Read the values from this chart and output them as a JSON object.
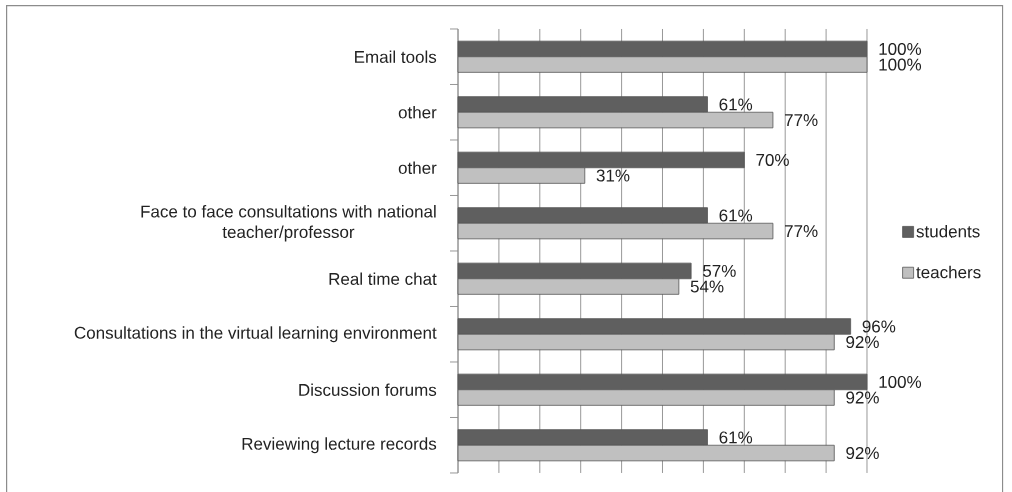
{
  "chart_data": {
    "type": "bar",
    "orientation": "horizontal",
    "categories": [
      "Email tools",
      "other",
      "other",
      "Face to face consultations with national teacher/professor",
      "Real time chat",
      "Consultations in the virtual learning environment",
      "Discussion forums",
      "Reviewing lecture records"
    ],
    "series": [
      {
        "name": "students",
        "color": "#5f5f5f",
        "values": [
          100,
          61,
          70,
          61,
          57,
          96,
          100,
          61
        ],
        "value_labels": [
          "100%",
          "61%",
          "70%",
          "61%",
          "57%",
          "96%",
          "100%",
          "61%"
        ]
      },
      {
        "name": "teachers",
        "color": "#c0c0c0",
        "values": [
          100,
          77,
          31,
          77,
          54,
          92,
          92,
          92
        ],
        "value_labels": [
          "100%",
          "77%",
          "31%",
          "77%",
          "54%",
          "92%",
          "92%",
          "92%"
        ]
      }
    ],
    "xlim": [
      0,
      100
    ],
    "xticks": [
      {
        "value": 0,
        "label": null
      },
      {
        "value": 10,
        "label": null
      },
      {
        "value": 20,
        "label": null
      },
      {
        "value": 30,
        "label": null
      },
      {
        "value": 40,
        "label": null
      },
      {
        "value": 50,
        "label": null
      },
      {
        "value": 60,
        "label": null
      },
      {
        "value": 70,
        "label": null
      },
      {
        "value": 80,
        "label": null
      },
      {
        "value": 90,
        "label": null
      },
      {
        "value": 100,
        "label": null
      }
    ],
    "grid": "x",
    "legend": "right",
    "tick_labels": "y"
  }
}
